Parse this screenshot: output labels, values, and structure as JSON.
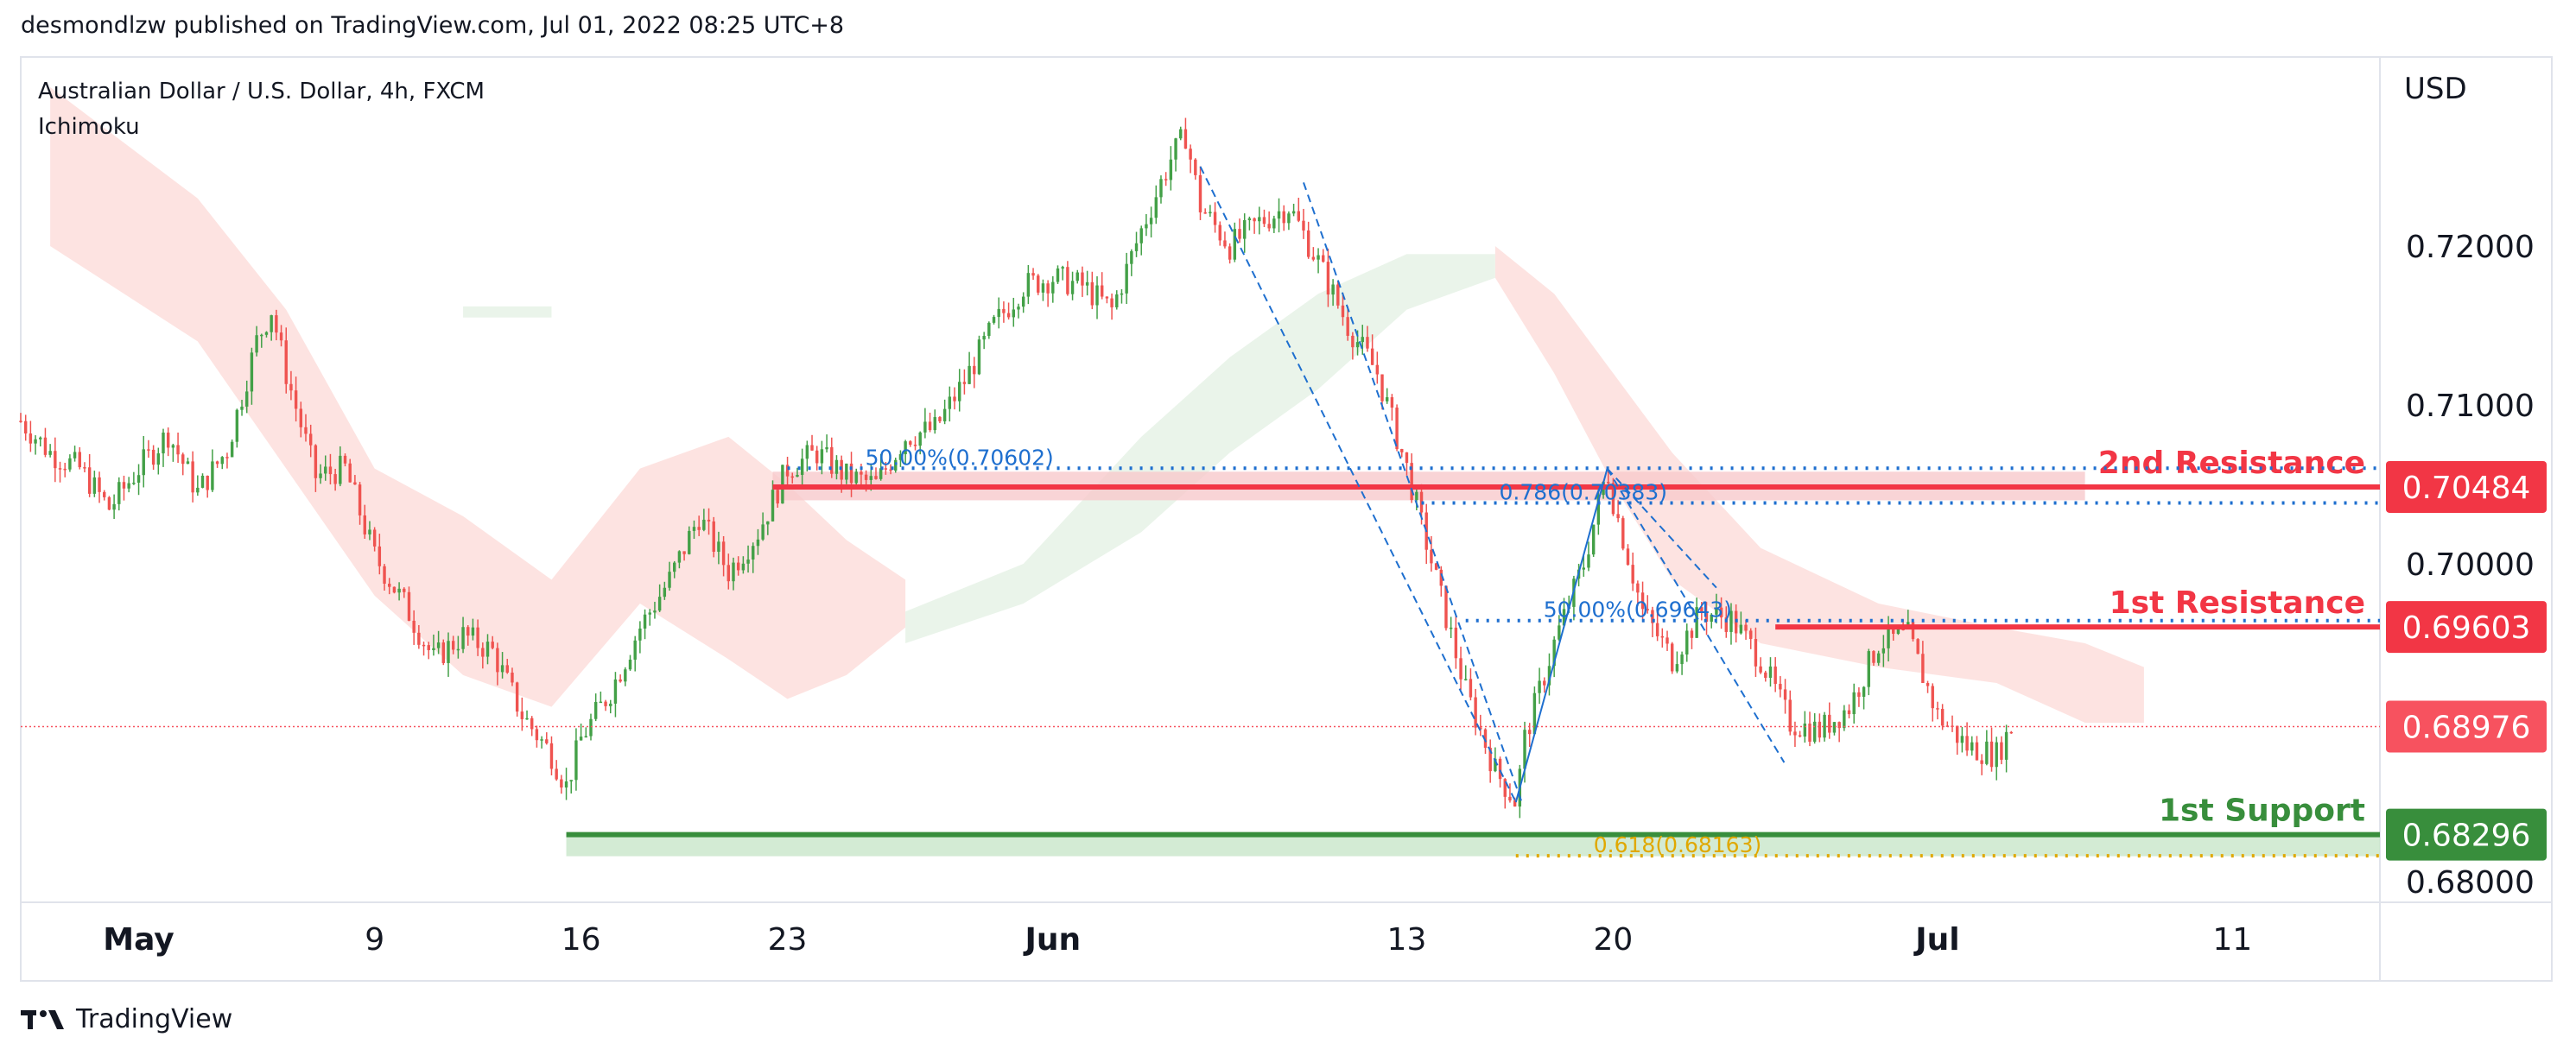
{
  "header": {
    "published_by": "desmondlzw published on TradingView.com, Jul 01, 2022 08:25 UTC+8"
  },
  "footer": {
    "brand": "TradingView"
  },
  "chart_data": {
    "type": "candlestick",
    "symbol_line": "Australian Dollar / U.S. Dollar, 4h, FXCM",
    "indicator": "Ichimoku",
    "currency": "USD",
    "y_ticks": [
      "0.72000",
      "0.71000",
      "0.70000",
      "0.68000"
    ],
    "y_ticks_values": [
      0.72,
      0.71,
      0.7,
      0.68
    ],
    "ylim": [
      0.6787,
      0.7319
    ],
    "x_ticks": [
      {
        "label": "May",
        "day": 0,
        "bold": true
      },
      {
        "label": "9",
        "day": 8,
        "bold": false
      },
      {
        "label": "16",
        "day": 15,
        "bold": false
      },
      {
        "label": "23",
        "day": 22,
        "bold": false
      },
      {
        "label": "Jun",
        "day": 31,
        "bold": true
      },
      {
        "label": "13",
        "day": 43,
        "bold": false
      },
      {
        "label": "20",
        "day": 50,
        "bold": false
      },
      {
        "label": "Jul",
        "day": 61,
        "bold": true
      },
      {
        "label": "11",
        "day": 71,
        "bold": false
      }
    ],
    "xlim_days": [
      -4,
      76
    ],
    "price_path": [
      [
        -4,
        0.709
      ],
      [
        -3,
        0.707
      ],
      [
        -2,
        0.706
      ],
      [
        -1,
        0.7035
      ],
      [
        0,
        0.706
      ],
      [
        1,
        0.7082
      ],
      [
        2,
        0.7045
      ],
      [
        3,
        0.7072
      ],
      [
        4,
        0.714
      ],
      [
        4.5,
        0.716
      ],
      [
        5,
        0.712
      ],
      [
        6,
        0.7055
      ],
      [
        7,
        0.706
      ],
      [
        8,
        0.7005
      ],
      [
        9,
        0.6975
      ],
      [
        10,
        0.694
      ],
      [
        11,
        0.6955
      ],
      [
        12,
        0.6945
      ],
      [
        13,
        0.6905
      ],
      [
        14,
        0.688
      ],
      [
        14.5,
        0.686
      ],
      [
        15,
        0.689
      ],
      [
        16,
        0.692
      ],
      [
        17,
        0.696
      ],
      [
        18,
        0.699
      ],
      [
        19,
        0.703
      ],
      [
        20,
        0.6995
      ],
      [
        21,
        0.702
      ],
      [
        22,
        0.706
      ],
      [
        23,
        0.707
      ],
      [
        24,
        0.7055
      ],
      [
        25,
        0.705
      ],
      [
        26,
        0.708
      ],
      [
        27,
        0.7085
      ],
      [
        28,
        0.7115
      ],
      [
        29,
        0.715
      ],
      [
        30,
        0.7175
      ],
      [
        31,
        0.718
      ],
      [
        32,
        0.7175
      ],
      [
        33,
        0.716
      ],
      [
        34,
        0.721
      ],
      [
        35,
        0.7255
      ],
      [
        35.5,
        0.727
      ],
      [
        36,
        0.7225
      ],
      [
        37,
        0.72
      ],
      [
        38,
        0.7215
      ],
      [
        39,
        0.7225
      ],
      [
        40,
        0.719
      ],
      [
        41,
        0.715
      ],
      [
        42,
        0.712
      ],
      [
        43,
        0.706
      ],
      [
        44,
        0.699
      ],
      [
        45,
        0.692
      ],
      [
        46,
        0.687
      ],
      [
        46.7,
        0.685
      ],
      [
        47,
        0.689
      ],
      [
        48,
        0.695
      ],
      [
        49,
        0.7
      ],
      [
        49.8,
        0.706
      ],
      [
        50,
        0.704
      ],
      [
        51,
        0.697
      ],
      [
        52,
        0.694
      ],
      [
        53,
        0.697
      ],
      [
        54,
        0.6965
      ],
      [
        55,
        0.694
      ],
      [
        56,
        0.69
      ],
      [
        57,
        0.6895
      ],
      [
        58,
        0.691
      ],
      [
        59,
        0.695
      ],
      [
        60,
        0.6955
      ],
      [
        60.5,
        0.693
      ],
      [
        61,
        0.6905
      ],
      [
        62,
        0.6885
      ],
      [
        63,
        0.688
      ],
      [
        63.5,
        0.6897
      ]
    ],
    "horizontal_levels": [
      {
        "label": "2nd Resistance",
        "price_label": "0.70484",
        "value": 0.70484,
        "color": "#f23645",
        "x_start_day": 21.5,
        "text_color": "#f23645"
      },
      {
        "label": "1st Resistance",
        "price_label": "0.69603",
        "value": 0.69603,
        "color": "#f23645",
        "x_start_day": 55.5,
        "text_color": "#f23645"
      },
      {
        "label": "1st Support",
        "price_label": "0.68296",
        "value": 0.68296,
        "color": "#388e3c",
        "x_start_day": 14.5,
        "text_color": "#388e3c"
      }
    ],
    "current_price": {
      "price_label": "0.68976",
      "value": 0.68976,
      "color": "#f7525f"
    },
    "fib_labels": [
      {
        "text": "50.00%(0.70602)",
        "value": 0.70602,
        "x_start_day": 22.0,
        "color": "#1e6fcf"
      },
      {
        "text": "0.786(0.70383)",
        "value": 0.70383,
        "x_start_day": 43.5,
        "color": "#1e6fcf"
      },
      {
        "text": "50.00%(0.69643)",
        "value": 0.69643,
        "x_start_day": 45.0,
        "color": "#1e6fcf"
      },
      {
        "text": "0.618(0.68163)",
        "value": 0.68163,
        "x_start_day": 46.7,
        "color": "#e0a800"
      }
    ],
    "cloud_bands": [
      {
        "color": "#fde0de",
        "points": [
          [
            -3,
            0.73,
            0.72
          ],
          [
            2,
            0.723,
            0.714
          ],
          [
            5,
            0.716,
            0.706
          ],
          [
            8,
            0.706,
            0.698
          ],
          [
            11,
            0.703,
            0.693
          ],
          [
            14,
            0.699,
            0.691
          ],
          [
            17,
            0.706,
            0.6975
          ],
          [
            20,
            0.708,
            0.694
          ],
          [
            22,
            0.705,
            0.6915
          ],
          [
            24,
            0.7015,
            0.693
          ],
          [
            26,
            0.699,
            0.696
          ]
        ]
      },
      {
        "color": "#e8f3e8",
        "points": [
          [
            26,
            0.697,
            0.695
          ],
          [
            30,
            0.7,
            0.6975
          ],
          [
            34,
            0.708,
            0.702
          ],
          [
            37,
            0.713,
            0.707
          ],
          [
            40,
            0.717,
            0.711
          ],
          [
            43,
            0.7195,
            0.716
          ],
          [
            46,
            0.7195,
            0.718
          ]
        ]
      },
      {
        "color": "#e8f3e8",
        "points": [
          [
            11,
            0.7162,
            0.7155
          ],
          [
            14,
            0.7162,
            0.7155
          ]
        ]
      },
      {
        "color": "#fde0de",
        "points": [
          [
            46,
            0.72,
            0.718
          ],
          [
            48,
            0.717,
            0.712
          ],
          [
            50,
            0.712,
            0.705
          ],
          [
            52,
            0.707,
            0.699
          ],
          [
            55,
            0.701,
            0.695
          ],
          [
            59,
            0.6975,
            0.6935
          ],
          [
            63,
            0.696,
            0.6925
          ],
          [
            66,
            0.695,
            0.69
          ],
          [
            68,
            0.6935,
            0.69
          ]
        ]
      }
    ],
    "ichimoku_shadow": []
  }
}
